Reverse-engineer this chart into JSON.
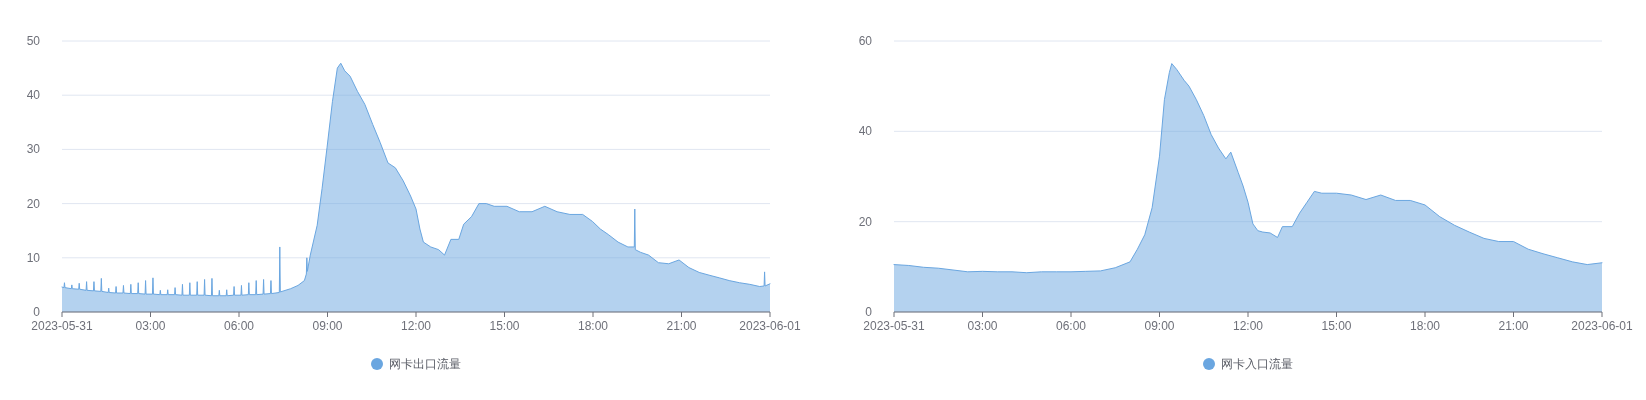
{
  "chart_data": [
    {
      "type": "area",
      "xlim": [
        "2023-05-31T00:00",
        "2023-06-01T00:00"
      ],
      "xticks": [
        {
          "value": "2023-05-31T00:00",
          "label": "2023-05-31"
        },
        {
          "value": "2023-05-31T03:00",
          "label": "03:00"
        },
        {
          "value": "2023-05-31T06:00",
          "label": "06:00"
        },
        {
          "value": "2023-05-31T09:00",
          "label": "09:00"
        },
        {
          "value": "2023-05-31T12:00",
          "label": "12:00"
        },
        {
          "value": "2023-05-31T15:00",
          "label": "15:00"
        },
        {
          "value": "2023-05-31T18:00",
          "label": "18:00"
        },
        {
          "value": "2023-05-31T21:00",
          "label": "21:00"
        },
        {
          "value": "2023-06-01T00:00",
          "label": "2023-06-01"
        }
      ],
      "ylim": [
        0,
        50
      ],
      "yticks": [
        0,
        10,
        20,
        30,
        40,
        50
      ],
      "grid": "y",
      "legend": "bottom",
      "x": [
        "2023-05-31T00:00",
        "2023-05-31T00:04",
        "2023-05-31T00:05",
        "2023-05-31T00:06",
        "2023-05-31T00:19",
        "2023-05-31T00:20",
        "2023-05-31T00:21",
        "2023-05-31T00:34",
        "2023-05-31T00:35",
        "2023-05-31T00:36",
        "2023-05-31T00:49",
        "2023-05-31T00:50",
        "2023-05-31T00:51",
        "2023-05-31T01:04",
        "2023-05-31T01:05",
        "2023-05-31T01:06",
        "2023-05-31T01:19",
        "2023-05-31T01:20",
        "2023-05-31T01:21",
        "2023-05-31T01:34",
        "2023-05-31T01:35",
        "2023-05-31T01:36",
        "2023-05-31T01:49",
        "2023-05-31T01:50",
        "2023-05-31T01:51",
        "2023-05-31T02:04",
        "2023-05-31T02:05",
        "2023-05-31T02:06",
        "2023-05-31T02:19",
        "2023-05-31T02:20",
        "2023-05-31T02:21",
        "2023-05-31T02:34",
        "2023-05-31T02:35",
        "2023-05-31T02:36",
        "2023-05-31T02:49",
        "2023-05-31T02:50",
        "2023-05-31T02:51",
        "2023-05-31T03:04",
        "2023-05-31T03:05",
        "2023-05-31T03:06",
        "2023-05-31T03:19",
        "2023-05-31T03:20",
        "2023-05-31T03:21",
        "2023-05-31T03:34",
        "2023-05-31T03:35",
        "2023-05-31T03:36",
        "2023-05-31T03:49",
        "2023-05-31T03:50",
        "2023-05-31T03:51",
        "2023-05-31T04:04",
        "2023-05-31T04:05",
        "2023-05-31T04:06",
        "2023-05-31T04:19",
        "2023-05-31T04:20",
        "2023-05-31T04:21",
        "2023-05-31T04:34",
        "2023-05-31T04:35",
        "2023-05-31T04:36",
        "2023-05-31T04:49",
        "2023-05-31T04:50",
        "2023-05-31T04:51",
        "2023-05-31T05:04",
        "2023-05-31T05:05",
        "2023-05-31T05:06",
        "2023-05-31T05:19",
        "2023-05-31T05:20",
        "2023-05-31T05:21",
        "2023-05-31T05:34",
        "2023-05-31T05:35",
        "2023-05-31T05:36",
        "2023-05-31T05:49",
        "2023-05-31T05:50",
        "2023-05-31T05:51",
        "2023-05-31T06:04",
        "2023-05-31T06:05",
        "2023-05-31T06:06",
        "2023-05-31T06:19",
        "2023-05-31T06:20",
        "2023-05-31T06:21",
        "2023-05-31T06:34",
        "2023-05-31T06:35",
        "2023-05-31T06:36",
        "2023-05-31T06:49",
        "2023-05-31T06:50",
        "2023-05-31T06:51",
        "2023-05-31T07:04",
        "2023-05-31T07:05",
        "2023-05-31T07:06",
        "2023-05-31T07:22",
        "2023-05-31T07:23",
        "2023-05-31T07:24",
        "2023-05-31T07:45",
        "2023-05-31T08:00",
        "2023-05-31T08:13",
        "2023-05-31T08:17",
        "2023-05-31T08:18",
        "2023-05-31T08:19",
        "2023-05-31T08:25",
        "2023-05-31T08:39",
        "2023-05-31T08:49",
        "2023-05-31T08:59",
        "2023-05-31T09:10",
        "2023-05-31T09:20",
        "2023-05-31T09:27",
        "2023-05-31T09:35",
        "2023-05-31T09:46",
        "2023-05-31T10:01",
        "2023-05-31T10:16",
        "2023-05-31T10:32",
        "2023-05-31T10:47",
        "2023-05-31T11:03",
        "2023-05-31T11:18",
        "2023-05-31T11:34",
        "2023-05-31T11:49",
        "2023-05-31T12:00",
        "2023-05-31T12:08",
        "2023-05-31T12:15",
        "2023-05-31T12:30",
        "2023-05-31T12:46",
        "2023-05-31T12:58",
        "2023-05-31T13:11",
        "2023-05-31T13:27",
        "2023-05-31T13:37",
        "2023-05-31T13:53",
        "2023-05-31T14:08",
        "2023-05-31T14:23",
        "2023-05-31T14:39",
        "2023-05-31T15:05",
        "2023-05-31T15:30",
        "2023-05-31T15:56",
        "2023-05-31T16:22",
        "2023-05-31T16:47",
        "2023-05-31T17:13",
        "2023-05-31T17:39",
        "2023-05-31T17:59",
        "2023-05-31T18:15",
        "2023-05-31T18:31",
        "2023-05-31T18:51",
        "2023-05-31T19:11",
        "2023-05-31T19:24",
        "2023-05-31T19:25",
        "2023-05-31T19:26",
        "2023-05-31T19:37",
        "2023-05-31T19:53",
        "2023-05-31T20:13",
        "2023-05-31T20:34",
        "2023-05-31T20:55",
        "2023-05-31T21:15",
        "2023-05-31T21:36",
        "2023-05-31T21:56",
        "2023-05-31T22:17",
        "2023-05-31T22:37",
        "2023-05-31T22:58",
        "2023-05-31T23:19",
        "2023-05-31T23:39",
        "2023-05-31T23:48",
        "2023-05-31T23:49",
        "2023-05-31T23:50",
        "2023-06-01T00:00"
      ],
      "series": [
        {
          "name": "网卡出口流量",
          "color": "#6aa6e0",
          "values": [
            4.6,
            4.5,
            5.4,
            4.5,
            4.3,
            5.0,
            4.3,
            4.2,
            5.3,
            4.2,
            4.0,
            5.6,
            4.0,
            3.9,
            5.6,
            3.9,
            3.8,
            6.2,
            3.8,
            3.6,
            4.4,
            3.6,
            3.5,
            4.7,
            3.5,
            3.5,
            4.9,
            3.5,
            3.4,
            5.1,
            3.4,
            3.4,
            5.4,
            3.4,
            3.3,
            5.8,
            3.3,
            3.3,
            6.3,
            3.3,
            3.2,
            4.0,
            3.2,
            3.2,
            4.1,
            3.2,
            3.2,
            4.5,
            3.2,
            3.1,
            5.1,
            3.1,
            3.1,
            5.4,
            3.1,
            3.1,
            5.6,
            3.1,
            3.1,
            6.0,
            3.1,
            3.0,
            6.2,
            3.0,
            3.0,
            4.0,
            3.0,
            3.0,
            4.1,
            3.0,
            3.1,
            4.7,
            3.1,
            3.1,
            4.9,
            3.1,
            3.2,
            5.4,
            3.2,
            3.2,
            5.8,
            3.2,
            3.3,
            6.0,
            3.3,
            3.4,
            5.8,
            3.4,
            3.6,
            12,
            3.7,
            4.3,
            4.9,
            5.8,
            7,
            10,
            7.5,
            10.5,
            16,
            22.8,
            30.3,
            38.8,
            45,
            45.9,
            44.5,
            43.5,
            40.7,
            38.3,
            34.6,
            31.3,
            27.5,
            26.6,
            24.2,
            21.4,
            19,
            15.3,
            12.9,
            12,
            11.5,
            10.5,
            13.4,
            13.4,
            16.2,
            17.6,
            20,
            20,
            19.5,
            19.5,
            18.5,
            18.5,
            19.5,
            18.5,
            18,
            18,
            16.7,
            15.3,
            14.3,
            12.9,
            12,
            12,
            19,
            11.5,
            11,
            10.5,
            9.1,
            8.9,
            9.6,
            8.2,
            7.3,
            6.8,
            6.3,
            5.8,
            5.4,
            5.1,
            4.7,
            4.8,
            7.4,
            4.8,
            5.2
          ]
        }
      ]
    },
    {
      "type": "area",
      "xlim": [
        "2023-05-31T00:00",
        "2023-06-01T00:00"
      ],
      "xticks": [
        {
          "value": "2023-05-31T00:00",
          "label": "2023-05-31"
        },
        {
          "value": "2023-05-31T03:00",
          "label": "03:00"
        },
        {
          "value": "2023-05-31T06:00",
          "label": "06:00"
        },
        {
          "value": "2023-05-31T09:00",
          "label": "09:00"
        },
        {
          "value": "2023-05-31T12:00",
          "label": "12:00"
        },
        {
          "value": "2023-05-31T15:00",
          "label": "15:00"
        },
        {
          "value": "2023-05-31T18:00",
          "label": "18:00"
        },
        {
          "value": "2023-05-31T21:00",
          "label": "21:00"
        },
        {
          "value": "2023-06-01T00:00",
          "label": "2023-06-01"
        }
      ],
      "ylim": [
        0,
        60
      ],
      "yticks": [
        0,
        20,
        40,
        60
      ],
      "grid": "y",
      "legend": "bottom",
      "x": [
        "2023-05-31T00:00",
        "2023-05-31T00:30",
        "2023-05-31T01:00",
        "2023-05-31T01:30",
        "2023-05-31T02:00",
        "2023-05-31T02:30",
        "2023-05-31T03:00",
        "2023-05-31T03:30",
        "2023-05-31T04:00",
        "2023-05-31T04:30",
        "2023-05-31T05:00",
        "2023-05-31T05:30",
        "2023-05-31T06:00",
        "2023-05-31T06:30",
        "2023-05-31T07:00",
        "2023-05-31T07:30",
        "2023-05-31T08:00",
        "2023-05-31T08:15",
        "2023-05-31T08:30",
        "2023-05-31T08:45",
        "2023-05-31T09:00",
        "2023-05-31T09:10",
        "2023-05-31T09:20",
        "2023-05-31T09:25",
        "2023-05-31T09:35",
        "2023-05-31T09:50",
        "2023-05-31T10:00",
        "2023-05-31T10:15",
        "2023-05-31T10:30",
        "2023-05-31T10:45",
        "2023-05-31T11:00",
        "2023-05-31T11:15",
        "2023-05-31T11:25",
        "2023-05-31T11:40",
        "2023-05-31T11:50",
        "2023-05-31T12:00",
        "2023-05-31T12:10",
        "2023-05-31T12:20",
        "2023-05-31T12:30",
        "2023-05-31T12:45",
        "2023-05-31T13:00",
        "2023-05-31T13:10",
        "2023-05-31T13:30",
        "2023-05-31T13:45",
        "2023-05-31T14:00",
        "2023-05-31T14:15",
        "2023-05-31T14:30",
        "2023-05-31T15:00",
        "2023-05-31T15:30",
        "2023-05-31T16:00",
        "2023-05-31T16:30",
        "2023-05-31T17:00",
        "2023-05-31T17:30",
        "2023-05-31T18:00",
        "2023-05-31T18:30",
        "2023-05-31T19:00",
        "2023-05-31T19:30",
        "2023-05-31T20:00",
        "2023-05-31T20:30",
        "2023-05-31T21:00",
        "2023-05-31T21:30",
        "2023-05-31T22:00",
        "2023-05-31T22:30",
        "2023-05-31T23:00",
        "2023-05-31T23:30",
        "2023-06-01T00:00"
      ],
      "series": [
        {
          "name": "网卡入口流量",
          "color": "#6aa6e0",
          "values": [
            10.5,
            10.3,
            9.9,
            9.7,
            9.3,
            8.9,
            9.0,
            8.9,
            8.9,
            8.7,
            8.9,
            8.9,
            8.9,
            9.0,
            9.1,
            9.8,
            11.1,
            13.9,
            17.1,
            23.1,
            34.5,
            47,
            53,
            55,
            53.7,
            51.3,
            50,
            47,
            43.5,
            39.3,
            36.3,
            33.9,
            35.4,
            30.9,
            27.9,
            24.3,
            19.5,
            18,
            17.7,
            17.5,
            16.5,
            18.9,
            18.9,
            21.9,
            24.3,
            26.7,
            26.3,
            26.3,
            25.9,
            24.9,
            25.9,
            24.7,
            24.7,
            23.7,
            21.1,
            19.2,
            17.7,
            16.3,
            15.6,
            15.6,
            13.9,
            12.9,
            12,
            11.1,
            10.5,
            10.9
          ]
        }
      ]
    }
  ]
}
